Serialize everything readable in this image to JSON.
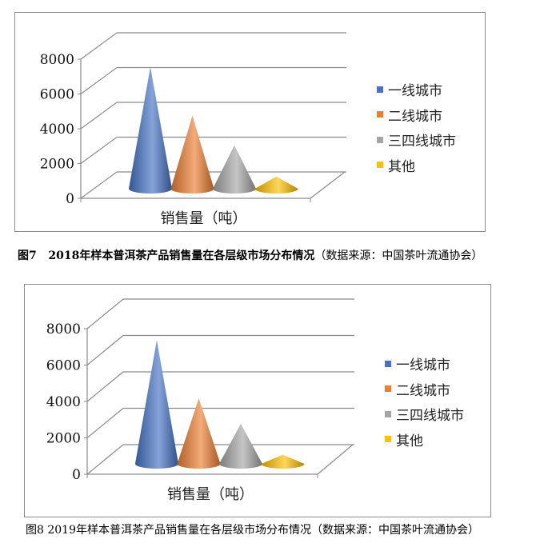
{
  "chart_data": [
    {
      "type": "bar",
      "style": "3d-cone",
      "title": "",
      "categories": [
        "销售量（吨）"
      ],
      "xlabel": "销售量（吨）",
      "ylabel": "",
      "ylim": [
        0,
        8000
      ],
      "yticks": [
        "0",
        "2000",
        "4000",
        "6000",
        "8000"
      ],
      "series": [
        {
          "name": "一线城市",
          "values": [
            7000
          ],
          "color": "#4472C4"
        },
        {
          "name": "二线城市",
          "values": [
            4200
          ],
          "color": "#ED7D31"
        },
        {
          "name": "三四线城市",
          "values": [
            2500
          ],
          "color": "#A5A5A5"
        },
        {
          "name": "其他",
          "values": [
            700
          ],
          "color": "#FFC000"
        }
      ],
      "legend": "right",
      "grid": true,
      "caption": {
        "label": "图7",
        "text": "2018年样本普洱茶产品销售量在各层级市场分布情况",
        "source": "（数据来源：中国茶叶流通协会）"
      }
    },
    {
      "type": "bar",
      "style": "3d-cone",
      "title": "",
      "categories": [
        "销售量（吨）"
      ],
      "xlabel": "销售量（吨）",
      "ylabel": "",
      "ylim": [
        0,
        8000
      ],
      "yticks": [
        "0",
        "2000",
        "4000",
        "6000",
        "8000"
      ],
      "series": [
        {
          "name": "一线城市",
          "values": [
            6800
          ],
          "color": "#4472C4"
        },
        {
          "name": "二线城市",
          "values": [
            3600
          ],
          "color": "#ED7D31"
        },
        {
          "name": "三四线城市",
          "values": [
            2200
          ],
          "color": "#A5A5A5"
        },
        {
          "name": "其他",
          "values": [
            500
          ],
          "color": "#FFC000"
        }
      ],
      "legend": "right",
      "grid": true,
      "caption": {
        "text": "图8 2019年样本普洱茶产品销售量在各层级市场分布情况（数据来源：中国茶叶流通协会）"
      }
    }
  ]
}
